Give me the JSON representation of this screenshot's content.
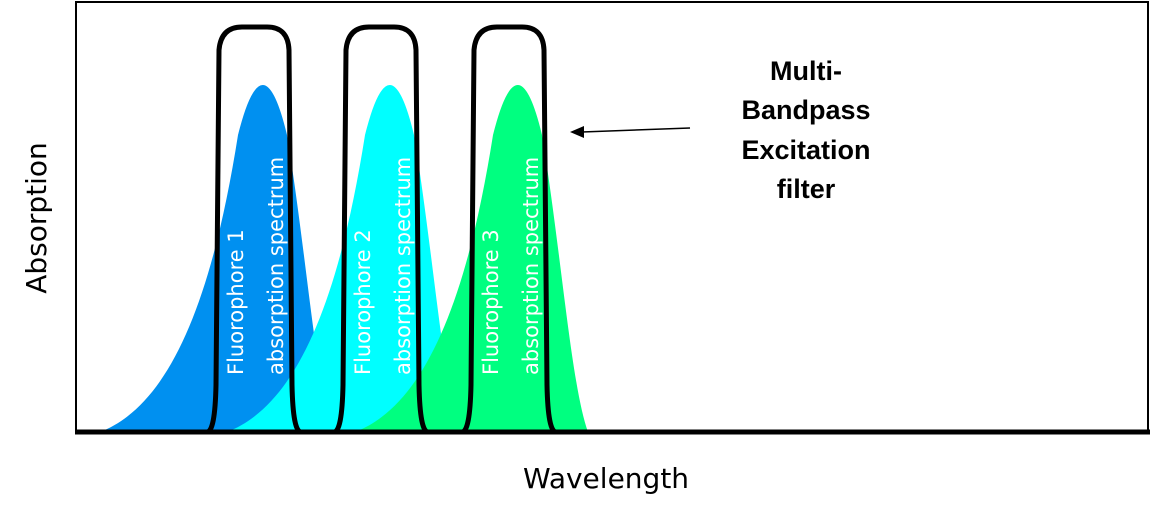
{
  "axes": {
    "x_label": "Wavelength",
    "y_label": "Absorption"
  },
  "spectra": [
    {
      "line1": "Fluorophore 1",
      "line2": "absorption spectrum",
      "color": "#0090f0"
    },
    {
      "line1": "Fluorophore 2",
      "line2": "absorption spectrum",
      "color": "#00ffff"
    },
    {
      "line1": "Fluorophore 3",
      "line2": "absorption spectrum",
      "color": "#00ff80"
    }
  ],
  "filter": {
    "lines": [
      "Multi-",
      "Bandpass",
      "Excitation",
      "filter"
    ],
    "color": "#000000",
    "bands": 3
  }
}
